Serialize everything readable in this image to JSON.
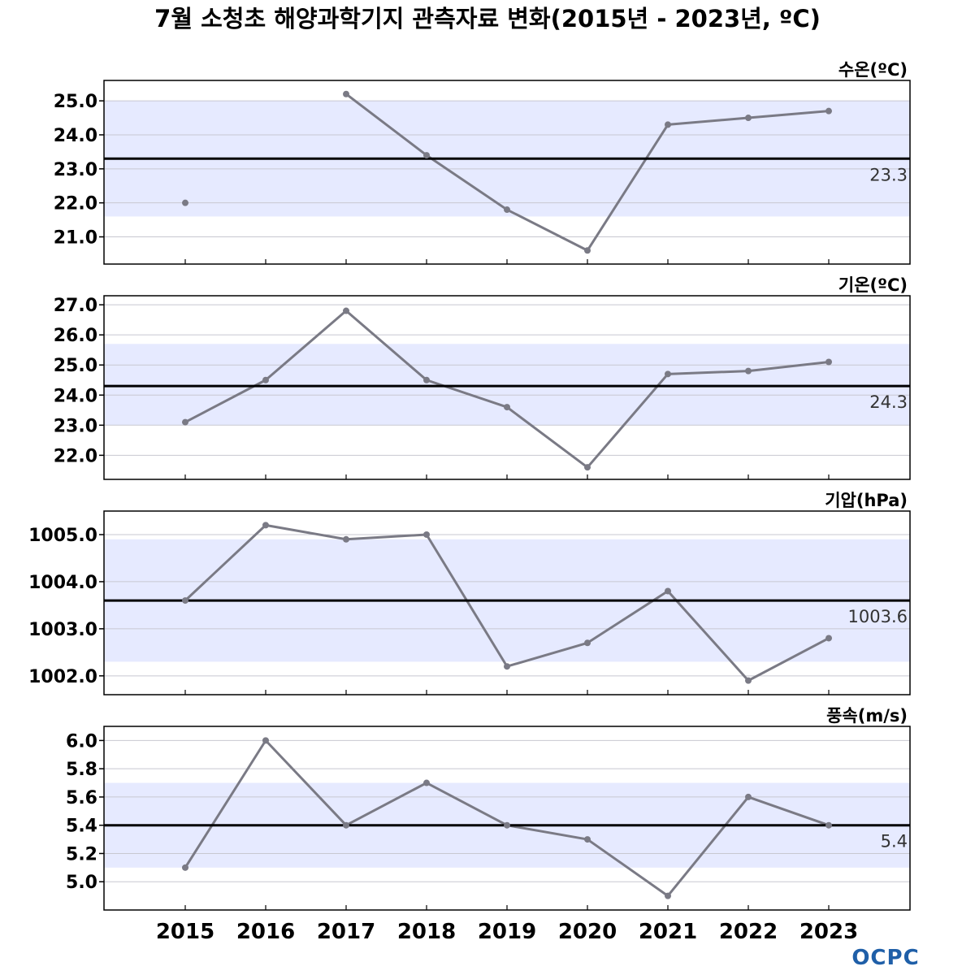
{
  "title": "7월 소청초 해양과학기지 관측자료 변화(2015년 - 2023년, ºC)",
  "logo": {
    "text": "OCPC",
    "color": "#1f5fa8"
  },
  "colors": {
    "band": "#e6eaff",
    "line": "#7a7a85",
    "mean": "#000000",
    "grid": "#c8c8d0",
    "frame": "#000000"
  },
  "chart_data": [
    {
      "type": "line",
      "label": "수온(ºC)",
      "x": [
        2015,
        2016,
        2017,
        2018,
        2019,
        2020,
        2021,
        2022,
        2023
      ],
      "values": [
        22.0,
        null,
        25.2,
        23.4,
        21.8,
        20.6,
        24.3,
        24.5,
        24.7
      ],
      "mean": 23.3,
      "mean_label": "23.3",
      "band": [
        21.6,
        25.0
      ],
      "yticks": [
        21.0,
        22.0,
        23.0,
        24.0,
        25.0
      ],
      "ytick_labels": [
        "21.0",
        "22.0",
        "23.0",
        "24.0",
        "25.0"
      ],
      "ylim": [
        20.2,
        25.6
      ]
    },
    {
      "type": "line",
      "label": "기온(ºC)",
      "x": [
        2015,
        2016,
        2017,
        2018,
        2019,
        2020,
        2021,
        2022,
        2023
      ],
      "values": [
        23.1,
        24.5,
        26.8,
        24.5,
        23.6,
        21.6,
        24.7,
        24.8,
        25.1
      ],
      "mean": 24.3,
      "mean_label": "24.3",
      "band": [
        23.0,
        25.7
      ],
      "yticks": [
        22.0,
        23.0,
        24.0,
        25.0,
        26.0,
        27.0
      ],
      "ytick_labels": [
        "22.0",
        "23.0",
        "24.0",
        "25.0",
        "26.0",
        "27.0"
      ],
      "ylim": [
        21.2,
        27.3
      ]
    },
    {
      "type": "line",
      "label": "기압(hPa)",
      "x": [
        2015,
        2016,
        2017,
        2018,
        2019,
        2020,
        2021,
        2022,
        2023
      ],
      "values": [
        1003.6,
        1005.2,
        1004.9,
        1005.0,
        1002.2,
        1002.7,
        1003.8,
        1001.9,
        1002.8
      ],
      "mean": 1003.6,
      "mean_label": "1003.6",
      "band": [
        1002.3,
        1004.9
      ],
      "yticks": [
        1002.0,
        1003.0,
        1004.0,
        1005.0
      ],
      "ytick_labels": [
        "1002.0",
        "1003.0",
        "1004.0",
        "1005.0"
      ],
      "ylim": [
        1001.6,
        1005.5
      ]
    },
    {
      "type": "line",
      "label": "풍속(m/s)",
      "x": [
        2015,
        2016,
        2017,
        2018,
        2019,
        2020,
        2021,
        2022,
        2023
      ],
      "values": [
        5.1,
        6.0,
        5.4,
        5.7,
        5.4,
        5.3,
        4.9,
        5.6,
        5.4
      ],
      "mean": 5.4,
      "mean_label": "5.4",
      "band": [
        5.1,
        5.7
      ],
      "yticks": [
        5.0,
        5.2,
        5.4,
        5.6,
        5.8,
        6.0
      ],
      "ytick_labels": [
        "5.0",
        "5.2",
        "5.4",
        "5.6",
        "5.8",
        "6.0"
      ],
      "ylim": [
        4.8,
        6.1
      ]
    }
  ],
  "x_labels": [
    "2015",
    "2016",
    "2017",
    "2018",
    "2019",
    "2020",
    "2021",
    "2022",
    "2023"
  ]
}
